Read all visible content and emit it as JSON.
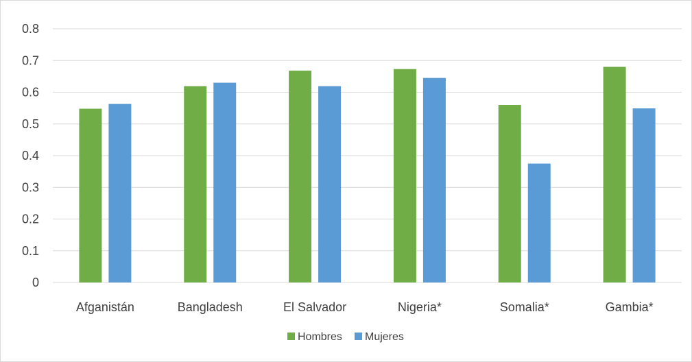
{
  "chart_data": {
    "type": "bar",
    "title": "",
    "xlabel": "",
    "ylabel": "",
    "categories": [
      "Afganistán",
      "Bangladesh",
      "El Salvador",
      "Nigeria*",
      "Somalia*",
      "Gambia*"
    ],
    "series": [
      {
        "name": "Hombres",
        "color": "#70ad47",
        "values": [
          0.548,
          0.619,
          0.668,
          0.673,
          0.56,
          0.68
        ]
      },
      {
        "name": "Mujeres",
        "color": "#5b9bd5",
        "values": [
          0.563,
          0.63,
          0.619,
          0.645,
          0.375,
          0.549
        ]
      }
    ],
    "ylim": [
      0,
      0.8
    ],
    "yticks": [
      "0",
      "0.1",
      "0.2",
      "0.3",
      "0.4",
      "0.5",
      "0.6",
      "0.7",
      "0.8"
    ],
    "grid": true,
    "legend_position": "bottom"
  }
}
